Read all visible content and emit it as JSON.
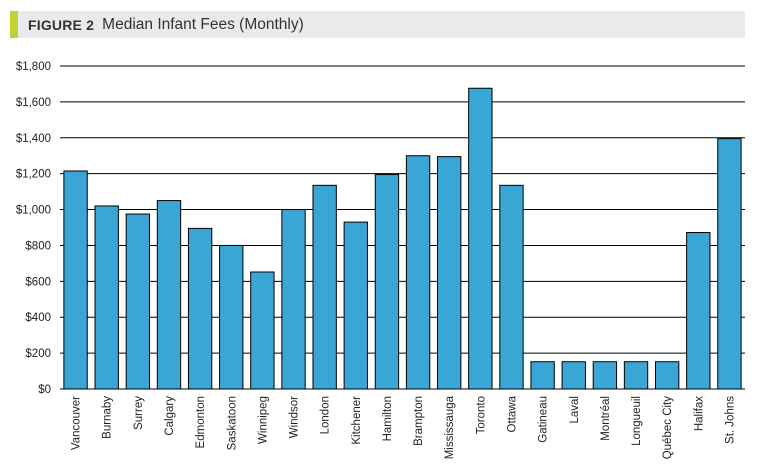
{
  "header": {
    "figure_label": "FIGURE 2",
    "title": "Median Infant Fees (Monthly)",
    "accent_color": "#c3d233",
    "background_color": "#e9eaec"
  },
  "chart_data": {
    "type": "bar",
    "title": "Median Infant Fees (Monthly)",
    "xlabel": "",
    "ylabel": "",
    "ylim": [
      0,
      1800
    ],
    "yticks": [
      0,
      200,
      400,
      600,
      800,
      1000,
      1200,
      1400,
      1600,
      1800
    ],
    "ytick_labels": [
      "$0",
      "$200",
      "$400",
      "$600",
      "$800",
      "$1,000",
      "$1,200",
      "$1,400",
      "$1,600",
      "$1,800"
    ],
    "grid": true,
    "bar_color": "#3aa6d6",
    "categories": [
      "Vancouver",
      "Burnaby",
      "Surrey",
      "Calgary",
      "Edmonton",
      "Saskatoon",
      "Winnipeg",
      "Windsor",
      "London",
      "Kitchener",
      "Hamilton",
      "Brampton",
      "Mississauga",
      "Toronto",
      "Ottawa",
      "Gatineau",
      "Laval",
      "Montréal",
      "Longueuil",
      "Québec City",
      "Halifax",
      "St. Johns"
    ],
    "values": [
      1215,
      1020,
      975,
      1050,
      895,
      800,
      652,
      1000,
      1135,
      930,
      1195,
      1300,
      1295,
      1676,
      1135,
      152,
      152,
      152,
      152,
      152,
      872,
      1395
    ]
  }
}
